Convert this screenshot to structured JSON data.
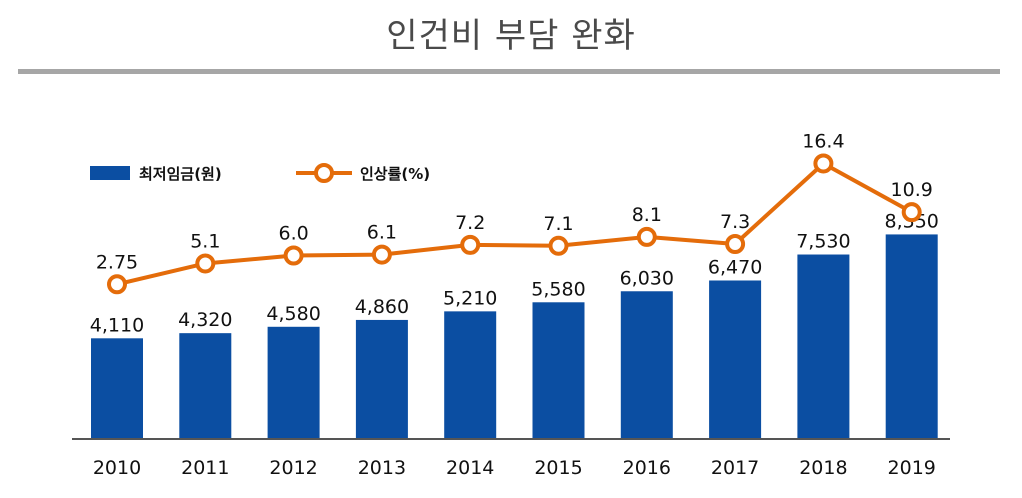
{
  "title": "인건비 부담 완화",
  "chart_data": {
    "type": "bar",
    "categories": [
      "2010",
      "2011",
      "2012",
      "2013",
      "2014",
      "2015",
      "2016",
      "2017",
      "2018",
      "2019"
    ],
    "series": [
      {
        "name": "최저임금(원)",
        "kind": "bar",
        "color": "#0b4ea2",
        "values": [
          4110,
          4320,
          4580,
          4860,
          5210,
          5580,
          6030,
          6470,
          7530,
          8350
        ],
        "labels": [
          "4,110",
          "4,320",
          "4,580",
          "4,860",
          "5,210",
          "5,580",
          "6,030",
          "6,470",
          "7,530",
          "8,350"
        ]
      },
      {
        "name": "인상률(%)",
        "kind": "line",
        "color": "#e46c0a",
        "values": [
          2.75,
          5.1,
          6.0,
          6.1,
          7.2,
          7.1,
          8.1,
          7.3,
          16.4,
          10.9
        ],
        "labels": [
          "2.75",
          "5.1",
          "6.0",
          "6.1",
          "7.2",
          "7.1",
          "8.1",
          "7.3",
          "16.4",
          "10.9"
        ]
      }
    ],
    "legend": {
      "placement": "top-left"
    },
    "grid": false
  }
}
